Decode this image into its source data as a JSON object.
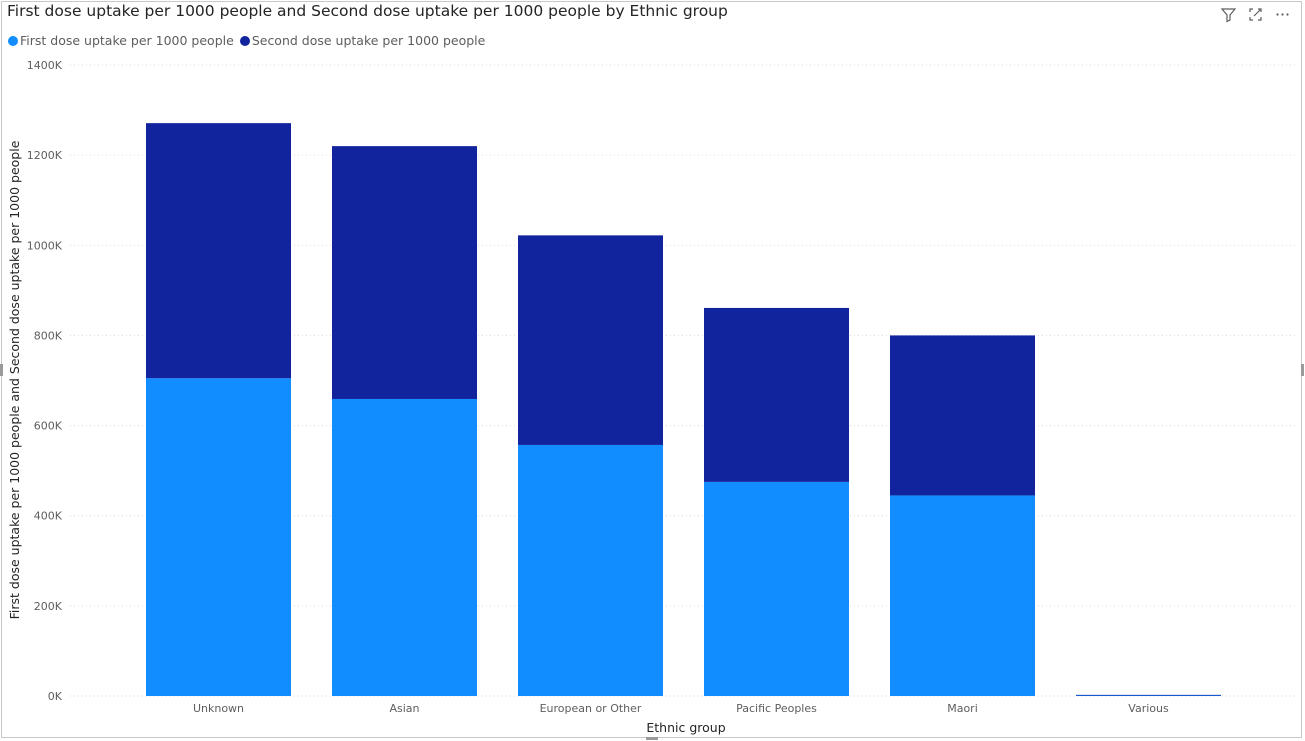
{
  "header": {
    "title": "First dose uptake per 1000 people and Second dose uptake per 1000 people by Ethnic group",
    "icons": [
      "filter-icon",
      "focus-mode-icon",
      "more-options-icon"
    ]
  },
  "chart_data": {
    "type": "bar",
    "stacked": true,
    "title": "First dose uptake per 1000 people and Second dose uptake per 1000 people by Ethnic group",
    "xlabel": "Ethnic group",
    "ylabel": "First dose uptake per 1000 people and Second dose uptake per 1000 people",
    "categories": [
      "Unknown",
      "Asian",
      "European or Other",
      "Pacific Peoples",
      "Maori",
      "Various"
    ],
    "series": [
      {
        "name": "First dose uptake per 1000 people",
        "color": "#118dff",
        "values": [
          705000,
          659000,
          557000,
          475000,
          445000,
          1500
        ]
      },
      {
        "name": "Second dose uptake per 1000 people",
        "color": "#12239e",
        "values": [
          566000,
          561000,
          465000,
          386000,
          355000,
          1000
        ]
      }
    ],
    "ylim": [
      0,
      1400000
    ],
    "yticks": [
      "0K",
      "200K",
      "400K",
      "600K",
      "800K",
      "1000K",
      "1200K",
      "1400K"
    ],
    "grid": true,
    "legend_position": "top-left"
  }
}
